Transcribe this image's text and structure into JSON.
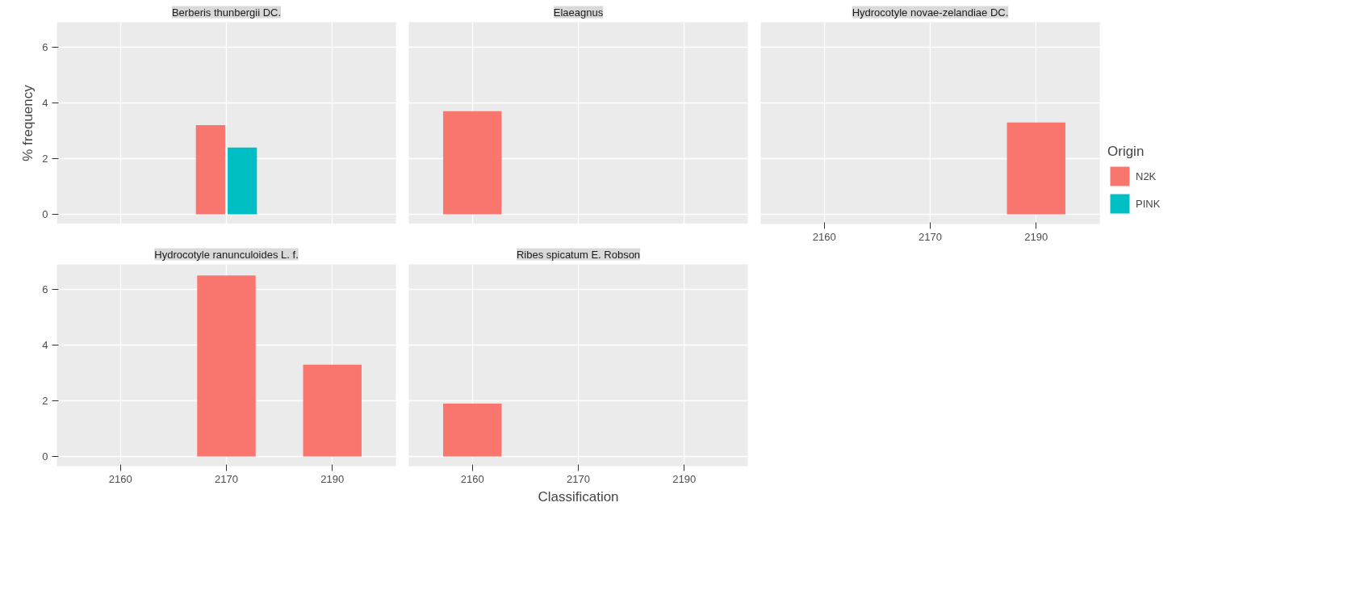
{
  "chart_data": [
    {
      "type": "bar",
      "title": "Berberis thunbergii DC.",
      "ylabel": "% frequency",
      "categories": [
        "2160",
        "2170",
        "2190"
      ],
      "ylim": [
        -0.35,
        6.9
      ],
      "yticks": [
        0,
        2,
        4,
        6
      ],
      "grid": true,
      "tick_labels": "y",
      "series": [
        {
          "color": "#f8766d",
          "values": [
            null,
            3.2,
            null
          ]
        },
        {
          "color": "#00bfc4",
          "values": [
            null,
            2.4,
            null
          ]
        }
      ]
    },
    {
      "type": "bar",
      "title": "Elaeagnus",
      "categories": [
        "2160",
        "2170",
        "2190"
      ],
      "ylim": [
        -0.35,
        6.9
      ],
      "yticks": [
        0,
        2,
        4,
        6
      ],
      "grid": true,
      "tick_labels": false,
      "series": [
        {
          "color": "#f8766d",
          "values": [
            3.7,
            null,
            null
          ]
        },
        {
          "color": "#00bfc4",
          "values": [
            null,
            null,
            null
          ]
        }
      ]
    },
    {
      "type": "bar",
      "title": "Hydrocotyle novae-zelandiae DC.",
      "categories": [
        "2160",
        "2170",
        "2190"
      ],
      "ylim": [
        -0.35,
        6.9
      ],
      "yticks": [
        0,
        2,
        4,
        6
      ],
      "grid": true,
      "tick_labels": "x",
      "legend": "right",
      "legend_title": "Origin",
      "series": [
        {
          "name": "N2K",
          "color": "#f8766d",
          "values": [
            null,
            null,
            3.3
          ]
        },
        {
          "name": "PINK",
          "color": "#00bfc4",
          "values": [
            null,
            null,
            null
          ]
        }
      ]
    },
    {
      "type": "bar",
      "title": "Hydrocotyle ranunculoides L. f.",
      "categories": [
        "2160",
        "2170",
        "2190"
      ],
      "ylim": [
        -0.35,
        6.9
      ],
      "yticks": [
        0,
        2,
        4,
        6
      ],
      "grid": true,
      "series": [
        {
          "color": "#f8766d",
          "values": [
            null,
            6.5,
            3.3
          ]
        },
        {
          "color": "#00bfc4",
          "values": [
            null,
            null,
            null
          ]
        }
      ]
    },
    {
      "type": "bar",
      "title": "Ribes spicatum E. Robson",
      "xlabel": "Classification",
      "categories": [
        "2160",
        "2170",
        "2190"
      ],
      "ylim": [
        -0.35,
        6.9
      ],
      "yticks": [
        0,
        2,
        4,
        6
      ],
      "grid": true,
      "tick_labels": "x",
      "series": [
        {
          "color": "#f8766d",
          "values": [
            1.9,
            null,
            null
          ]
        },
        {
          "color": "#00bfc4",
          "values": [
            null,
            null,
            null
          ]
        }
      ]
    }
  ]
}
